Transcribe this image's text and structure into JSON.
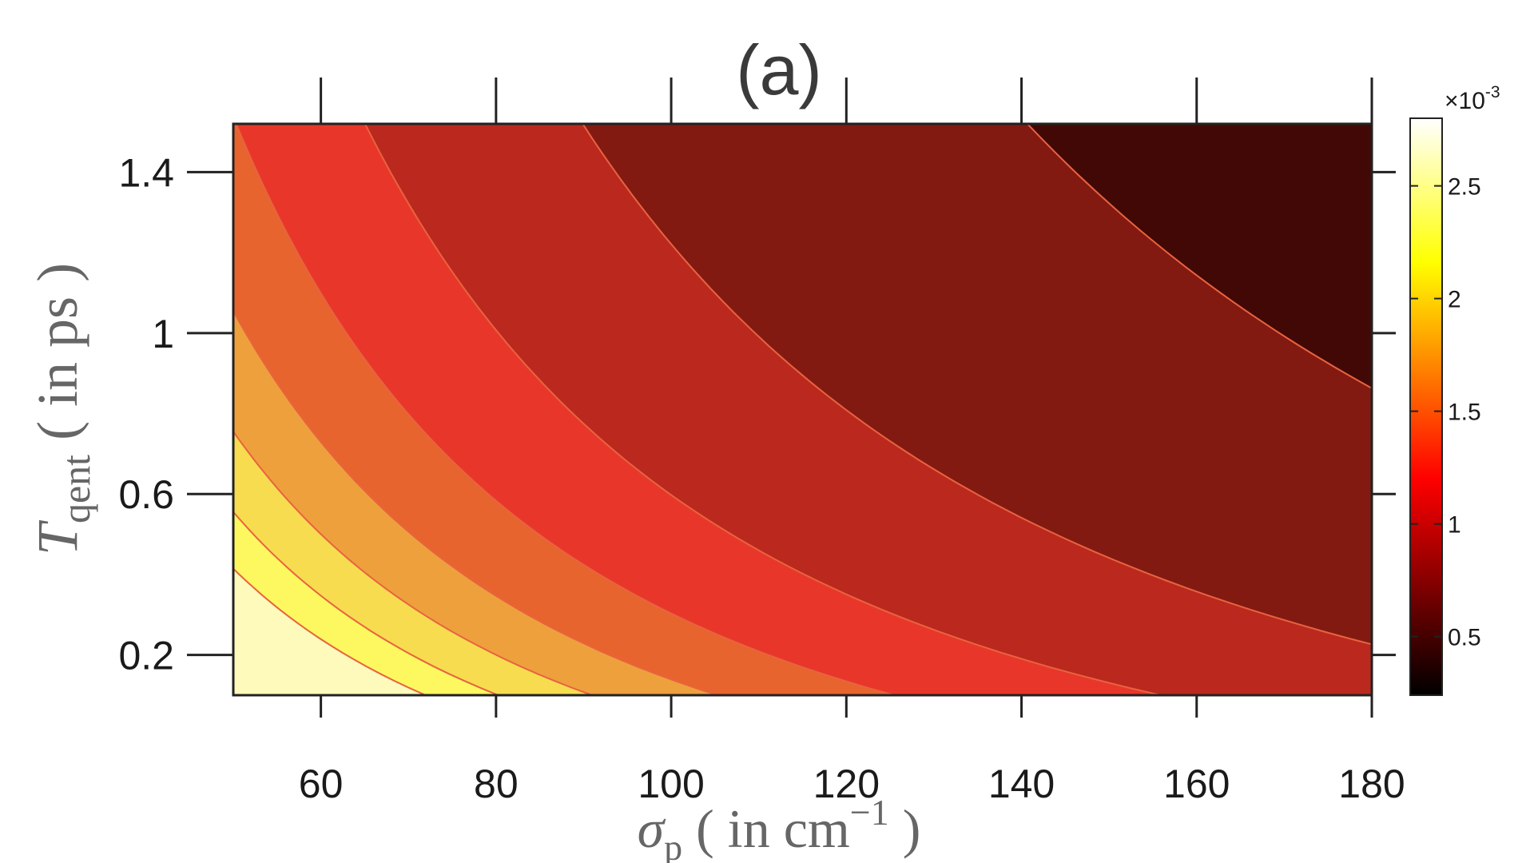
{
  "chart_data": {
    "type": "heatmap",
    "subtype": "filled-contour",
    "title": "(a)",
    "xlabel": {
      "symbol": "σ",
      "subscript": "p",
      "open": "( in cm",
      "superscript": "−1",
      "close": " )"
    },
    "ylabel": {
      "symbol": "T",
      "subscript": "qent",
      "text": "( in ps )"
    },
    "xlim": [
      50,
      180
    ],
    "ylim": [
      0.1,
      1.52
    ],
    "xticks": [
      "60",
      "80",
      "100",
      "120",
      "140",
      "160",
      "180"
    ],
    "yticks": [
      "0.2",
      "0.6",
      "1",
      "1.4"
    ],
    "colorbar": {
      "range": [
        0.00024,
        0.0028
      ],
      "ticks": [
        "0.5",
        "1",
        "1.5",
        "2",
        "2.5"
      ],
      "multiplier": "×10",
      "exponent": "-3",
      "colormap": "hot"
    },
    "contour_levels": [
      0.0003,
      0.0006,
      0.0009,
      0.0012,
      0.0015,
      0.0018,
      0.0021,
      0.0024,
      0.0027
    ],
    "band_colors": [
      "#000000",
      "#420805",
      "#821a12",
      "#bb281e",
      "#e8372a",
      "#e8642e",
      "#eea03c",
      "#f7dc50",
      "#fdf85f",
      "#fdfabb"
    ],
    "contour_line_color": "#e8633f",
    "grid": false,
    "legend": "colorbar-right"
  }
}
